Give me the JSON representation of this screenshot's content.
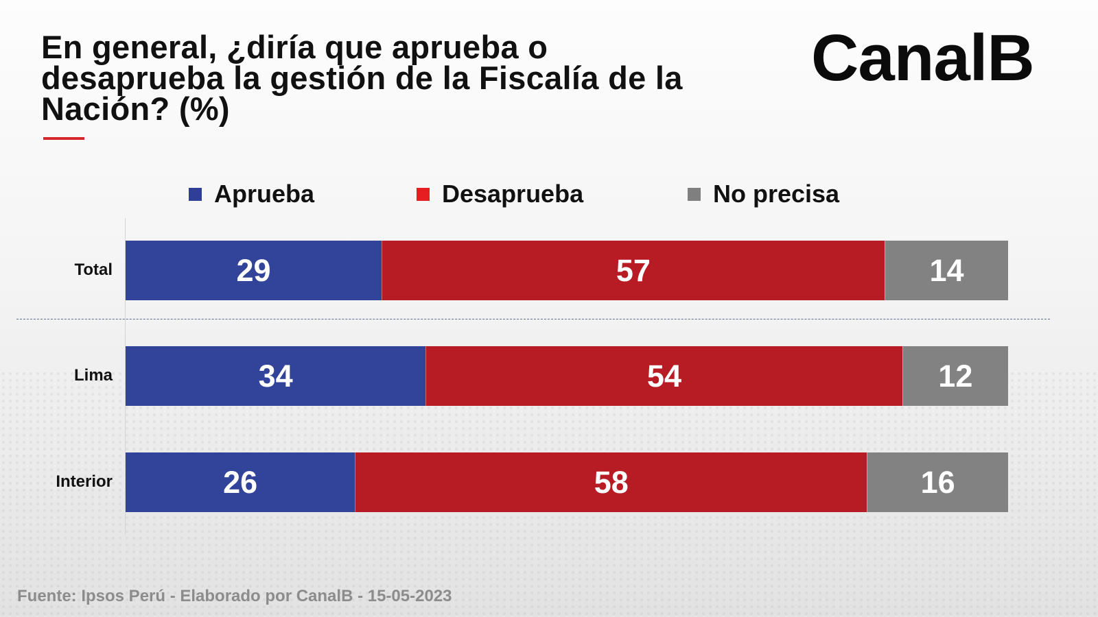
{
  "title": "En general, ¿diría que aprueba o desaprueba la gestión de la Fiscalía de la Nación? (%)",
  "logo": "CanalB",
  "source": "Fuente: Ipsos Perú - Elaborado por CanalB - 15-05-2023",
  "colors": {
    "accent": "#d7252c",
    "aprueba": "#32449a",
    "desaprueba": "#b71c24",
    "no_precisa": "#828282",
    "legend_aprueba": "#2f3f98",
    "legend_desaprueba": "#e61e22",
    "legend_no_precisa": "#7f7f7f"
  },
  "chart_data": {
    "type": "bar",
    "orientation": "horizontal",
    "stacked": true,
    "categories": [
      "Total",
      "Lima",
      "Interior"
    ],
    "series": [
      {
        "name": "Aprueba",
        "values": [
          29,
          34,
          26
        ]
      },
      {
        "name": "Desaprueba",
        "values": [
          57,
          54,
          58
        ]
      },
      {
        "name": "No precisa",
        "values": [
          14,
          12,
          16
        ]
      }
    ],
    "xlim": [
      0,
      100
    ],
    "legend_placement": "top",
    "grid": false
  }
}
